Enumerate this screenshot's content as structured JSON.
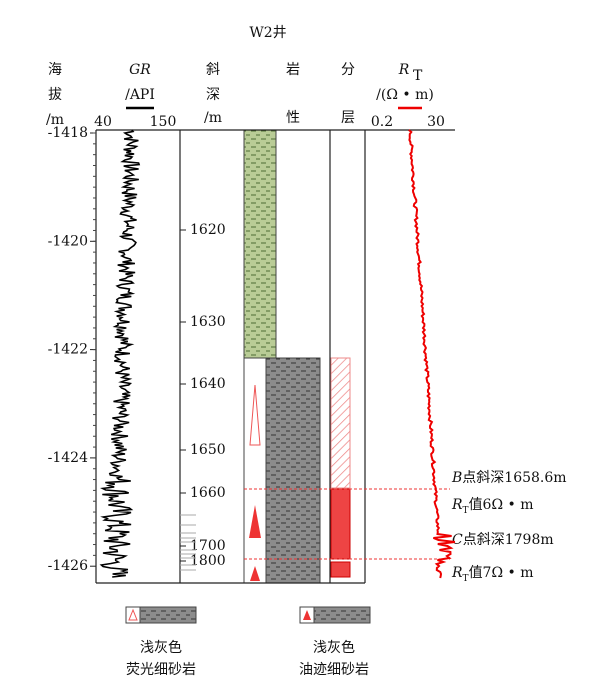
{
  "title": "W2井",
  "headers": {
    "altitude": [
      "海",
      "拔",
      "/m"
    ],
    "gr": {
      "name": "GR",
      "unit": "/API",
      "min": "40",
      "max": "150"
    },
    "depth": [
      "斜",
      "深",
      "/m"
    ],
    "lithology": [
      "岩",
      "性"
    ],
    "layer": [
      "分",
      "层"
    ],
    "rt": {
      "symbol": "R",
      "subscript": "T",
      "unit": "/(Ω • m)",
      "min": "0.2",
      "max": "30"
    }
  },
  "altitude_ticks": [
    "-1418",
    "-1420",
    "-1422",
    "-1424",
    "-1426"
  ],
  "depth_ticks": [
    "1620",
    "1630",
    "1640",
    "1650",
    "1660",
    "1700",
    "1800"
  ],
  "annotations": [
    {
      "italic": "B",
      "text": "点斜深1658.6m"
    },
    {
      "text": "值6Ω • m"
    },
    {
      "italic": "C",
      "text": "点斜深1798m"
    },
    {
      "text": "值7Ω • m"
    }
  ],
  "legend": [
    {
      "line1": "浅灰色",
      "line2": "荧光细砂岩"
    },
    {
      "line1": "浅灰色",
      "line2": "油迹细砂岩"
    }
  ]
}
